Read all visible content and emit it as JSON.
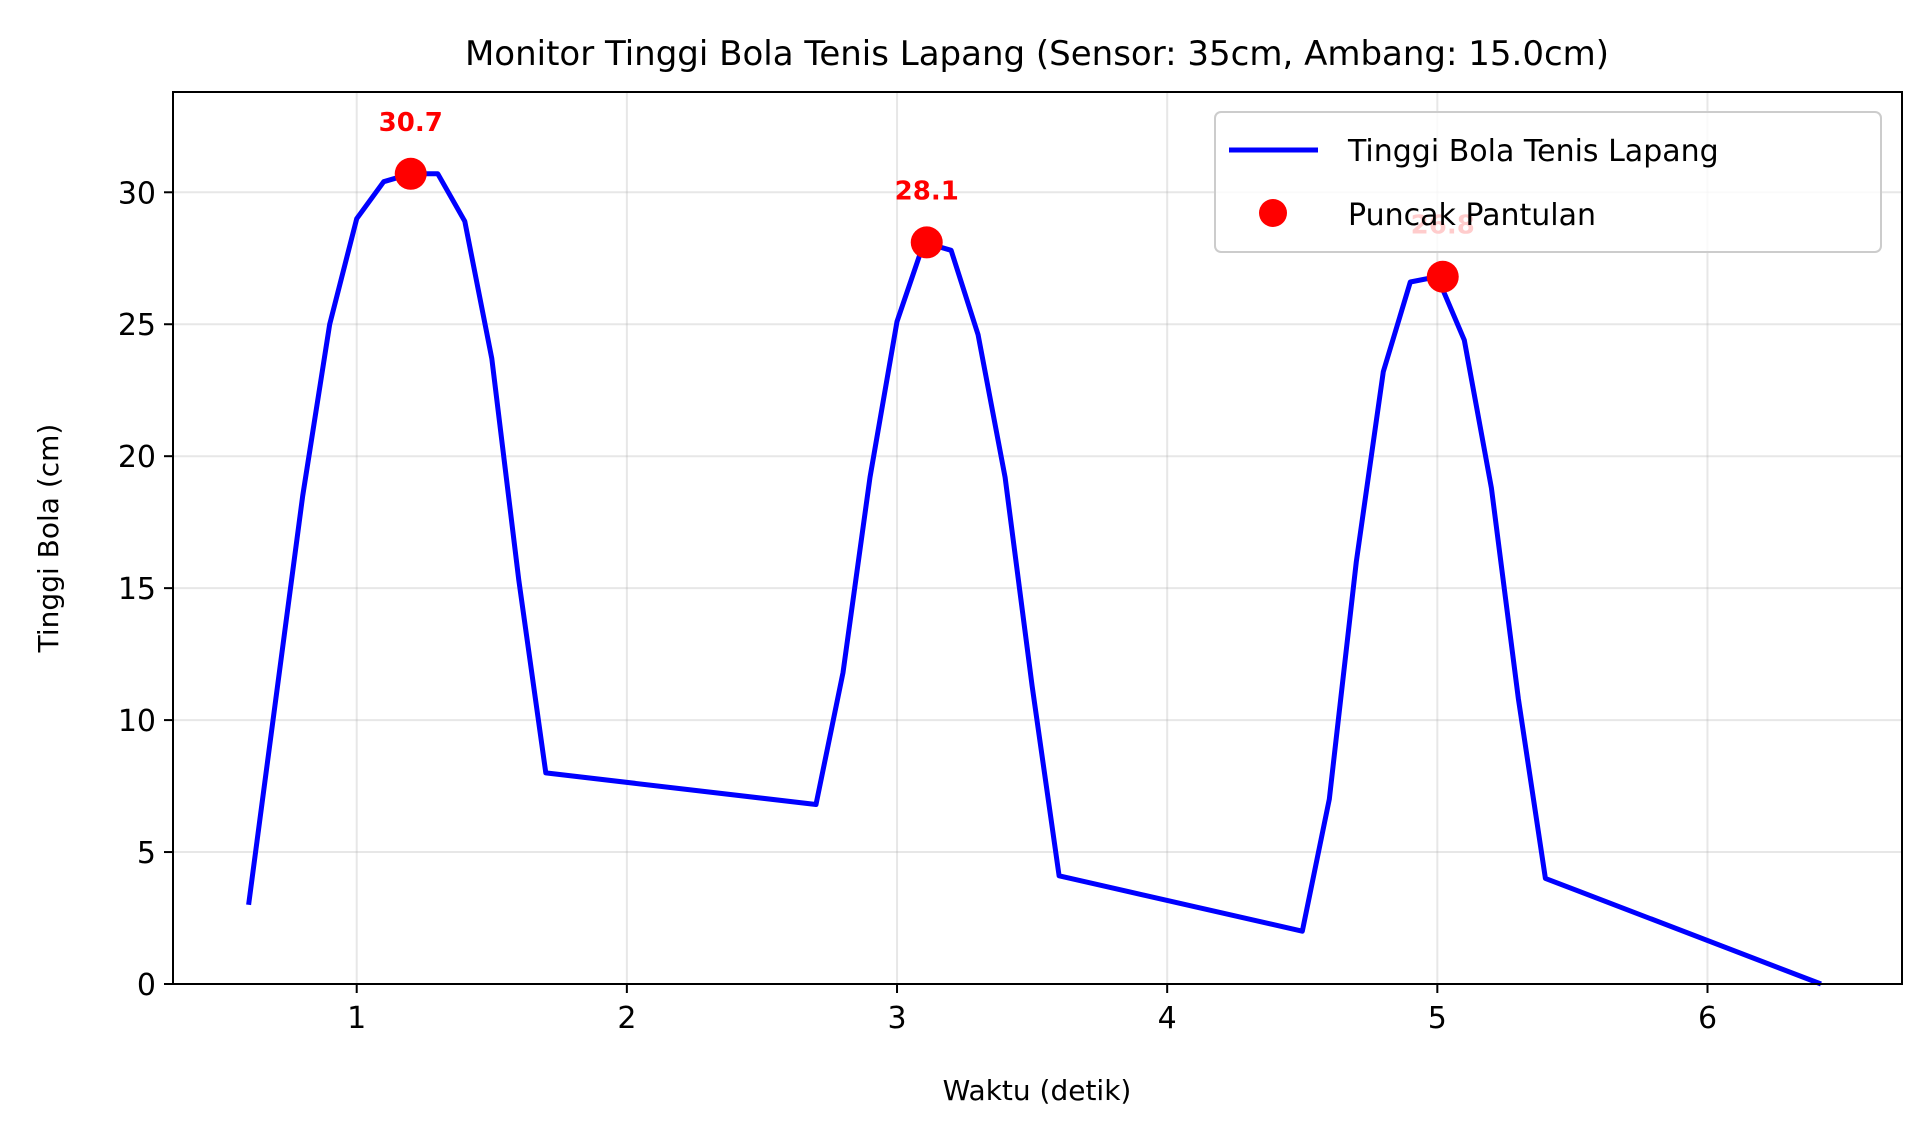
{
  "chart_data": {
    "type": "line",
    "title": "Monitor Tinggi Bola Tenis Lapang (Sensor: 35cm, Ambang: 15.0cm)",
    "xlabel": "Waktu (detik)",
    "ylabel": "Tinggi Bola (cm)",
    "xlim": [
      0.32,
      6.72
    ],
    "ylim": [
      0,
      33.8
    ],
    "xticks": [
      1,
      2,
      3,
      4,
      5,
      6
    ],
    "yticks": [
      0,
      5,
      10,
      15,
      20,
      25,
      30
    ],
    "grid": true,
    "legend_position": "top-right",
    "series": [
      {
        "name": "Tinggi Bola Tenis Lapang",
        "color": "#0000ff",
        "style": "line",
        "x": [
          0.6,
          0.8,
          0.9,
          1.0,
          1.1,
          1.2,
          1.3,
          1.4,
          1.5,
          1.6,
          1.7,
          2.7,
          2.8,
          2.9,
          3.0,
          3.1,
          3.2,
          3.3,
          3.4,
          3.5,
          3.6,
          4.5,
          4.6,
          4.7,
          4.8,
          4.9,
          5.0,
          5.1,
          5.2,
          5.3,
          5.4,
          6.42
        ],
        "y": [
          3.0,
          18.5,
          25.0,
          29.0,
          30.4,
          30.7,
          30.7,
          28.9,
          23.7,
          15.3,
          8.0,
          6.8,
          11.8,
          19.2,
          25.1,
          28.1,
          27.8,
          24.6,
          19.2,
          11.3,
          4.1,
          2.0,
          7.0,
          16.0,
          23.2,
          26.6,
          26.8,
          24.4,
          18.8,
          10.8,
          4.0,
          0.0
        ]
      },
      {
        "name": "Puncak Pantulan",
        "color": "#ff0000",
        "style": "marker",
        "x": [
          1.2,
          3.11,
          5.02
        ],
        "y": [
          30.7,
          28.1,
          26.8
        ]
      }
    ],
    "annotations": [
      {
        "text": "30.7",
        "x": 1.2,
        "y": 30.7
      },
      {
        "text": "28.1",
        "x": 3.11,
        "y": 28.1
      },
      {
        "text": "26.8",
        "x": 5.02,
        "y": 26.8
      }
    ]
  }
}
